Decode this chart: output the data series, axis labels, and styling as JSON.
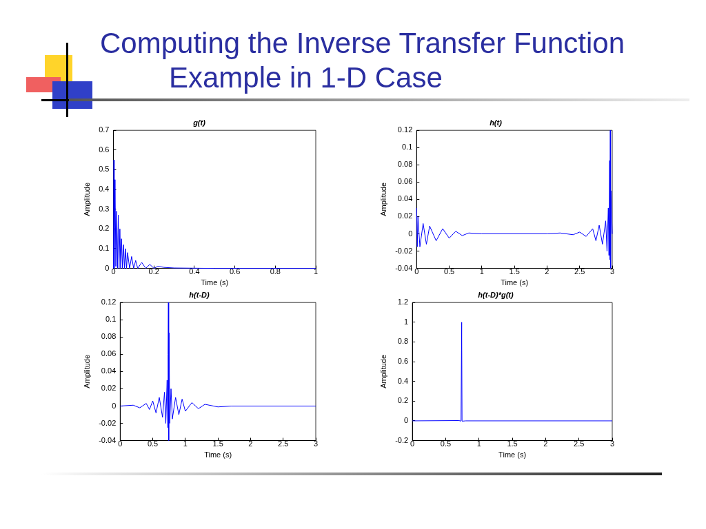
{
  "chart_data": [
    {
      "type": "other",
      "title": "Computing the Inverse Transfer Function Example in 1-D Case"
    },
    {
      "type": "line",
      "title": "g(t)",
      "xlabel": "Time (s)",
      "ylabel": "Amplitude",
      "color": "#0000ff",
      "marker": "none",
      "grid": false,
      "xlim": [
        0,
        1
      ],
      "ylim": [
        0,
        0.7
      ],
      "xticks": [
        0,
        0.2,
        0.4,
        0.6,
        0.8,
        1
      ],
      "yticks": [
        0,
        0.1,
        0.2,
        0.3,
        0.4,
        0.5,
        0.6,
        0.7
      ],
      "x": [
        0,
        0.002,
        0.004,
        0.008,
        0.012,
        0.016,
        0.02,
        0.024,
        0.028,
        0.032,
        0.036,
        0.04,
        0.045,
        0.05,
        0.055,
        0.06,
        0.065,
        0.07,
        0.08,
        0.09,
        0.1,
        0.11,
        0.12,
        0.14,
        0.16,
        0.18,
        0.2,
        0.22,
        0.25,
        0.3,
        0.5,
        1
      ],
      "values": [
        0,
        0.55,
        0,
        0.45,
        0.01,
        0.29,
        0,
        0.27,
        0,
        0.2,
        0,
        0.15,
        0,
        0.12,
        0,
        0.1,
        0,
        0.08,
        0,
        0.06,
        0,
        0.04,
        0,
        0.03,
        0,
        0.02,
        0,
        0.01,
        0.005,
        0.002,
        0,
        0
      ]
    },
    {
      "type": "line",
      "title": "h(t)",
      "xlabel": "Time (s)",
      "ylabel": "Amplitude",
      "color": "#0000ff",
      "marker": "none",
      "grid": false,
      "xlim": [
        0,
        3
      ],
      "ylim": [
        -0.04,
        0.12
      ],
      "xticks": [
        0,
        0.5,
        1,
        1.5,
        2,
        2.5,
        3
      ],
      "yticks": [
        -0.04,
        -0.02,
        0,
        0.02,
        0.04,
        0.06,
        0.08,
        0.1,
        0.12
      ],
      "x": [
        0,
        0.01,
        0.02,
        0.05,
        0.1,
        0.15,
        0.2,
        0.3,
        0.4,
        0.5,
        0.6,
        0.7,
        0.8,
        1,
        2,
        2.2,
        2.4,
        2.5,
        2.6,
        2.7,
        2.75,
        2.8,
        2.85,
        2.9,
        2.92,
        2.94,
        2.95,
        2.96,
        2.965,
        2.97,
        2.975,
        2.98,
        3
      ],
      "values": [
        0.03,
        -0.015,
        0.02,
        -0.015,
        0.012,
        -0.012,
        0.009,
        -0.008,
        0.006,
        -0.005,
        0.003,
        -0.002,
        0.001,
        0,
        0,
        0.001,
        -0.001,
        0.002,
        -0.003,
        0.006,
        -0.008,
        0.01,
        -0.012,
        0.015,
        -0.02,
        0.03,
        -0.025,
        0.085,
        -0.03,
        0.12,
        -0.04,
        0.05,
        0
      ]
    },
    {
      "type": "line",
      "title": "h(t-D)",
      "xlabel": "Time (s)",
      "ylabel": "Amplitude",
      "color": "#0000ff",
      "marker": "none",
      "grid": false,
      "xlim": [
        0,
        3
      ],
      "ylim": [
        -0.04,
        0.12
      ],
      "xticks": [
        0,
        0.5,
        1,
        1.5,
        2,
        2.5,
        3
      ],
      "yticks": [
        -0.04,
        -0.02,
        0,
        0.02,
        0.04,
        0.06,
        0.08,
        0.1,
        0.12
      ],
      "x": [
        0,
        0.2,
        0.3,
        0.4,
        0.45,
        0.5,
        0.55,
        0.6,
        0.65,
        0.68,
        0.7,
        0.72,
        0.73,
        0.735,
        0.74,
        0.745,
        0.75,
        0.76,
        0.78,
        0.8,
        0.85,
        0.9,
        0.95,
        1,
        1.1,
        1.2,
        1.3,
        1.5,
        1.7,
        3
      ],
      "values": [
        0,
        0.001,
        -0.002,
        0.003,
        -0.004,
        0.006,
        -0.008,
        0.01,
        -0.013,
        0.016,
        -0.02,
        0.03,
        -0.025,
        0.06,
        0.12,
        -0.04,
        0.085,
        -0.02,
        0.02,
        -0.015,
        0.01,
        -0.01,
        0.008,
        -0.006,
        0.004,
        -0.003,
        0.002,
        -0.001,
        0,
        0
      ]
    },
    {
      "type": "line",
      "title": "h(t-D)*g(t)",
      "xlabel": "Time (s)",
      "ylabel": "Amplitude",
      "color": "#0000ff",
      "marker": "none",
      "grid": false,
      "xlim": [
        0,
        3
      ],
      "ylim": [
        -0.2,
        1.2
      ],
      "xticks": [
        0,
        0.5,
        1,
        1.5,
        2,
        2.5,
        3
      ],
      "yticks": [
        -0.2,
        0,
        0.2,
        0.4,
        0.6,
        0.8,
        1,
        1.2
      ],
      "x": [
        0,
        0.7,
        0.73,
        0.74,
        0.745,
        0.75,
        0.8,
        3
      ],
      "values": [
        0,
        0.003,
        -0.003,
        1,
        0,
        -0.003,
        0,
        0
      ]
    }
  ]
}
